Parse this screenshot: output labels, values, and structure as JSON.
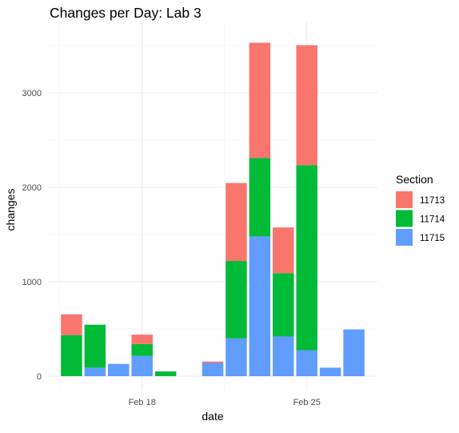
{
  "chart_data": {
    "type": "bar",
    "stacked": true,
    "title": "Changes per Day: Lab 3",
    "xlabel": "date",
    "ylabel": "changes",
    "x_ticks": [
      {
        "date": "2019-02-18",
        "label": "Feb 18"
      },
      {
        "date": "2019-02-25",
        "label": "Feb 25"
      }
    ],
    "x_range": [
      "2019-02-14",
      "2019-02-28"
    ],
    "ylim": [
      0,
      3550
    ],
    "y_ticks": [
      0,
      1000,
      2000,
      3000
    ],
    "grid": true,
    "legend_position": "right",
    "legend_title": "Section",
    "dates": [
      "2019-02-15",
      "2019-02-16",
      "2019-02-17",
      "2019-02-18",
      "2019-02-19",
      "2019-02-20",
      "2019-02-21",
      "2019-02-22",
      "2019-02-23",
      "2019-02-24",
      "2019-02-25",
      "2019-02-26",
      "2019-02-27"
    ],
    "series": [
      {
        "name": "11715",
        "color": "#619CFF",
        "values": [
          0,
          90,
          130,
          215,
          0,
          0,
          140,
          400,
          1480,
          420,
          275,
          90,
          495
        ]
      },
      {
        "name": "11714",
        "color": "#00BA38",
        "values": [
          435,
          455,
          0,
          125,
          50,
          0,
          0,
          820,
          830,
          670,
          1960,
          0,
          0
        ]
      },
      {
        "name": "11713",
        "color": "#F8766D",
        "values": [
          220,
          0,
          0,
          100,
          0,
          0,
          15,
          825,
          1220,
          485,
          1270,
          0,
          0
        ]
      }
    ]
  }
}
